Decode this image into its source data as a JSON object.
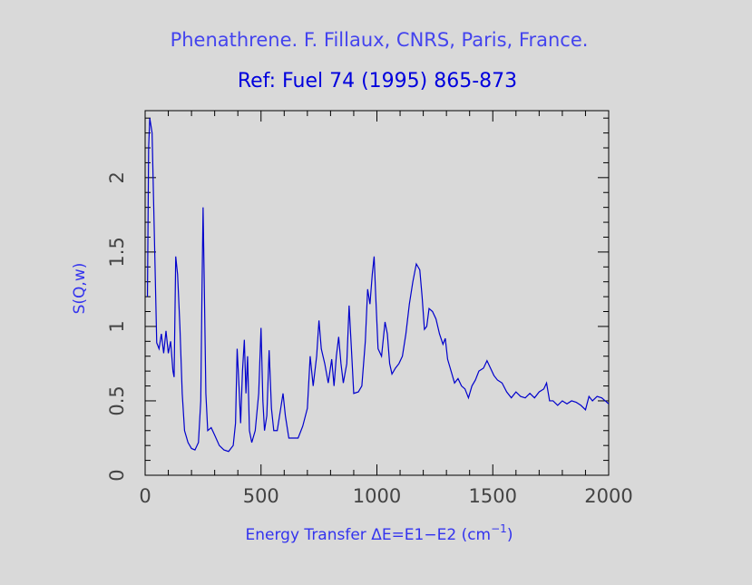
{
  "chart_data": {
    "type": "line",
    "title": "Phenathrene. F. Fillaux, CNRS, Paris, France.",
    "subtitle": "Ref: Fuel 74 (1995) 865-873",
    "x_label": [
      "Energy Transfer ΔE=E1−E2 (cm",
      "−1",
      ")"
    ],
    "y_label": "S(Q,w)",
    "xlim": [
      0,
      2000
    ],
    "ylim": [
      0,
      2.45
    ],
    "xticks": [
      0,
      500,
      1000,
      1500,
      2000
    ],
    "yticks": [
      0,
      0.5,
      1,
      1.5,
      2
    ],
    "xticks_minor": [
      100,
      200,
      300,
      400,
      600,
      700,
      800,
      900,
      1100,
      1200,
      1300,
      1400,
      1600,
      1700,
      1800,
      1900
    ],
    "yticks_minor": [
      0.1,
      0.2,
      0.3,
      0.4,
      0.6,
      0.7,
      0.8,
      0.9,
      1.1,
      1.2,
      1.3,
      1.4,
      1.6,
      1.7,
      1.8,
      1.9,
      2.1,
      2.2,
      2.3,
      2.4
    ],
    "series": [
      {
        "color": "#0000cc",
        "x": [
          10,
          15,
          20,
          30,
          40,
          50,
          60,
          70,
          80,
          90,
          100,
          110,
          120,
          125,
          132,
          140,
          150,
          160,
          170,
          185,
          200,
          215,
          230,
          240,
          245,
          250,
          255,
          262,
          270,
          285,
          300,
          320,
          340,
          360,
          380,
          390,
          397,
          405,
          412,
          420,
          428,
          435,
          442,
          450,
          460,
          475,
          490,
          500,
          508,
          515,
          525,
          535,
          545,
          555,
          570,
          585,
          595,
          605,
          620,
          640,
          660,
          680,
          700,
          712,
          725,
          740,
          750,
          760,
          775,
          790,
          805,
          815,
          825,
          835,
          845,
          855,
          870,
          880,
          890,
          900,
          920,
          935,
          950,
          960,
          970,
          980,
          988,
          995,
          1005,
          1020,
          1035,
          1045,
          1055,
          1065,
          1080,
          1095,
          1110,
          1125,
          1140,
          1155,
          1170,
          1185,
          1195,
          1205,
          1215,
          1225,
          1240,
          1255,
          1270,
          1285,
          1295,
          1305,
          1320,
          1335,
          1350,
          1365,
          1380,
          1395,
          1410,
          1425,
          1440,
          1460,
          1475,
          1490,
          1505,
          1520,
          1540,
          1560,
          1580,
          1600,
          1620,
          1640,
          1660,
          1680,
          1700,
          1720,
          1732,
          1745,
          1760,
          1780,
          1800,
          1820,
          1840,
          1860,
          1880,
          1900,
          1915,
          1930,
          1950,
          1970,
          1985,
          2000
        ],
        "values": [
          1.2,
          2.2,
          2.4,
          2.3,
          1.6,
          0.89,
          0.85,
          0.95,
          0.82,
          0.97,
          0.82,
          0.9,
          0.7,
          0.66,
          1.47,
          1.35,
          1.0,
          0.55,
          0.3,
          0.22,
          0.18,
          0.17,
          0.22,
          0.5,
          1.2,
          1.8,
          1.3,
          0.55,
          0.3,
          0.32,
          0.27,
          0.2,
          0.17,
          0.16,
          0.2,
          0.35,
          0.85,
          0.6,
          0.35,
          0.7,
          0.91,
          0.55,
          0.8,
          0.3,
          0.22,
          0.3,
          0.55,
          0.99,
          0.5,
          0.3,
          0.4,
          0.84,
          0.45,
          0.3,
          0.3,
          0.45,
          0.55,
          0.4,
          0.25,
          0.25,
          0.25,
          0.33,
          0.45,
          0.8,
          0.6,
          0.8,
          1.04,
          0.85,
          0.75,
          0.62,
          0.78,
          0.6,
          0.8,
          0.93,
          0.75,
          0.62,
          0.75,
          1.14,
          0.85,
          0.55,
          0.56,
          0.6,
          0.9,
          1.25,
          1.15,
          1.35,
          1.47,
          1.2,
          0.85,
          0.8,
          1.03,
          0.95,
          0.75,
          0.68,
          0.72,
          0.75,
          0.8,
          0.95,
          1.15,
          1.3,
          1.42,
          1.38,
          1.2,
          0.98,
          1.0,
          1.12,
          1.1,
          1.05,
          0.95,
          0.88,
          0.92,
          0.78,
          0.7,
          0.62,
          0.65,
          0.6,
          0.58,
          0.52,
          0.6,
          0.64,
          0.7,
          0.72,
          0.77,
          0.72,
          0.67,
          0.64,
          0.62,
          0.56,
          0.52,
          0.56,
          0.53,
          0.52,
          0.55,
          0.52,
          0.56,
          0.58,
          0.62,
          0.5,
          0.5,
          0.47,
          0.5,
          0.48,
          0.5,
          0.49,
          0.47,
          0.44,
          0.53,
          0.5,
          0.53,
          0.52,
          0.5,
          0.48
        ]
      }
    ]
  }
}
